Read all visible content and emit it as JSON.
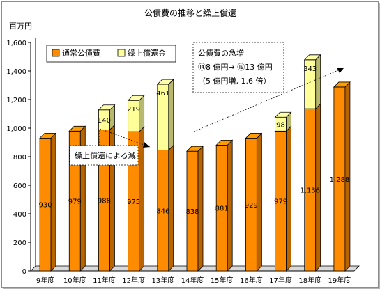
{
  "chart_data": {
    "type": "bar",
    "stacked": true,
    "title": "公債費の推移と繰上償還",
    "ylabel": "百万円",
    "ylim": [
      0,
      1600
    ],
    "yticks": [
      0,
      200,
      400,
      600,
      800,
      1000,
      1200,
      1400,
      1600
    ],
    "ytick_labels": [
      "0",
      "200",
      "400",
      "600",
      "800",
      "1,000",
      "1,200",
      "1,400",
      "1,600"
    ],
    "grid": false,
    "legend_position": "top-left",
    "categories": [
      "9年度",
      "10年度",
      "11年度",
      "12年度",
      "13年度",
      "14年度",
      "15年度",
      "16年度",
      "17年度",
      "18年度",
      "19年度"
    ],
    "series": [
      {
        "name": "通常公債費",
        "color": "#ff8c00",
        "values": [
          930,
          979,
          988,
          975,
          846,
          838,
          881,
          929,
          979,
          1136,
          1288
        ],
        "value_labels": [
          "930",
          "979",
          "988",
          "975",
          "846",
          "838",
          "881",
          "929",
          "979",
          "1,136",
          "1,288"
        ]
      },
      {
        "name": "繰上償還金",
        "color": "#ffff99",
        "values": [
          0,
          0,
          140,
          219,
          461,
          0,
          0,
          0,
          98,
          343,
          0
        ],
        "value_labels": [
          "",
          "",
          "140",
          "219",
          "461",
          "",
          "",
          "",
          "98",
          "343",
          ""
        ]
      }
    ],
    "annotations": [
      {
        "text": "繰上償還による減"
      },
      {
        "lines": [
          "公債費の急増",
          "⑭8 億円→ ⑲13 億円",
          "（5 億円増, 1.6 倍）"
        ]
      }
    ]
  }
}
